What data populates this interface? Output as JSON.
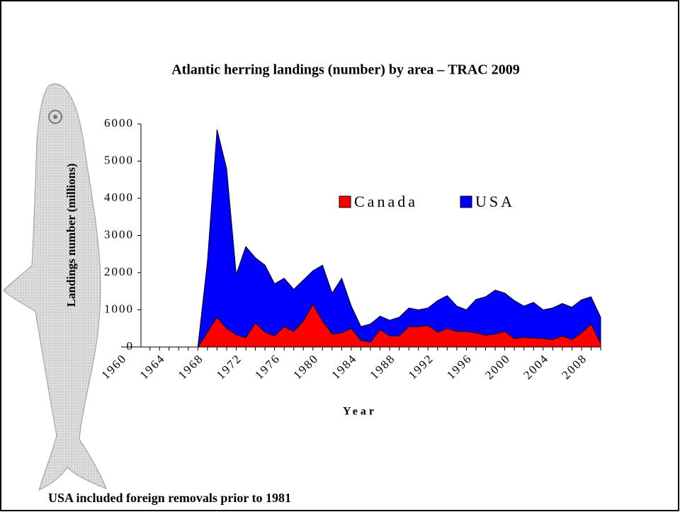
{
  "chart_data": {
    "type": "stacked-area",
    "title": "Atlantic herring landings (number) by area – TRAC 2009",
    "x_label": "Year",
    "y_label": "Landings number (millions)",
    "footnote": "USA included foreign removals prior to 1981",
    "x": [
      1960,
      1961,
      1962,
      1963,
      1964,
      1965,
      1966,
      1967,
      1968,
      1969,
      1970,
      1971,
      1972,
      1973,
      1974,
      1975,
      1976,
      1977,
      1978,
      1979,
      1980,
      1981,
      1982,
      1983,
      1984,
      1985,
      1986,
      1987,
      1988,
      1989,
      1990,
      1991,
      1992,
      1993,
      1994,
      1995,
      1996,
      1997,
      1998,
      1999,
      2000,
      2001,
      2002,
      2003,
      2004,
      2005,
      2006,
      2007,
      2008,
      2009,
      2010
    ],
    "series": [
      {
        "name": "Canada",
        "color": "#ff0000",
        "values": [
          0,
          0,
          0,
          0,
          0,
          0,
          0,
          0,
          0,
          400,
          800,
          500,
          330,
          250,
          650,
          400,
          300,
          550,
          420,
          700,
          1150,
          700,
          350,
          380,
          500,
          180,
          130,
          470,
          300,
          300,
          550,
          550,
          580,
          400,
          500,
          420,
          420,
          380,
          320,
          350,
          420,
          230,
          260,
          240,
          230,
          200,
          300,
          200,
          380,
          620,
          100
        ]
      },
      {
        "name": "USA",
        "color": "#0000ff",
        "values": [
          0,
          0,
          0,
          0,
          0,
          0,
          0,
          0,
          0,
          1900,
          5050,
          4300,
          1620,
          2450,
          1750,
          1800,
          1400,
          1300,
          1130,
          1100,
          900,
          1500,
          1100,
          1470,
          600,
          370,
          490,
          360,
          420,
          500,
          500,
          450,
          470,
          850,
          880,
          680,
          580,
          900,
          1030,
          1180,
          1030,
          1020,
          840,
          960,
          770,
          850,
          870,
          870,
          890,
          730,
          700
        ]
      }
    ],
    "xlim": [
      1960,
      2010
    ],
    "xticks": [
      1960,
      1964,
      1968,
      1972,
      1976,
      1980,
      1984,
      1988,
      1992,
      1996,
      2000,
      2004,
      2008
    ],
    "ylim": [
      0,
      6000
    ],
    "yticks": [
      0,
      1000,
      2000,
      3000,
      4000,
      5000,
      6000
    ]
  }
}
